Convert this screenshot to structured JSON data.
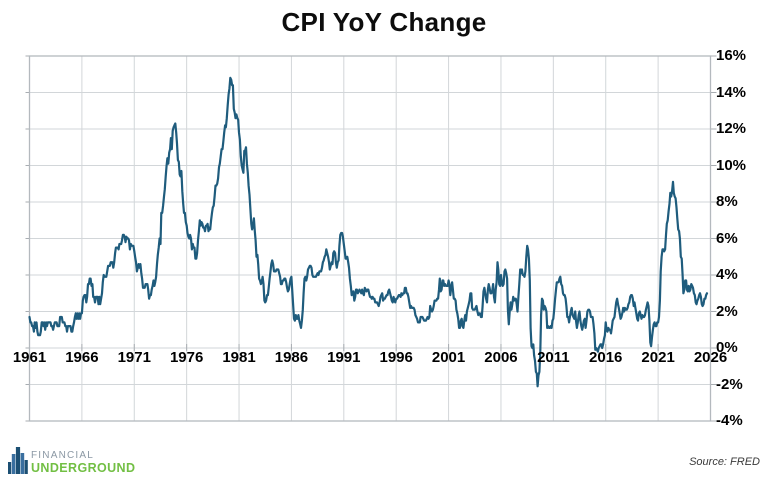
{
  "chart_data": {
    "type": "line",
    "title": "CPI YoY Change",
    "legend": "none",
    "grid": true,
    "x_axis": {
      "min": 1961,
      "max": 2026,
      "ticks": [
        1961,
        1966,
        1971,
        1976,
        1981,
        1986,
        1991,
        1996,
        2001,
        2006,
        2011,
        2016,
        2021,
        2026
      ],
      "tick_labels": [
        "1961",
        "1966",
        "1971",
        "1976",
        "1981",
        "1986",
        "1991",
        "1996",
        "2001",
        "2006",
        "2011",
        "2016",
        "2021",
        "2026"
      ]
    },
    "y_axis": {
      "min": -4,
      "max": 16,
      "step": 2,
      "unit": "%",
      "tick_labels": [
        "16%",
        "14%",
        "12%",
        "10%",
        "8%",
        "6%",
        "4%",
        "2%",
        "0%",
        "-2%",
        "-4%"
      ]
    },
    "series": [
      {
        "name": "CPI YoY % change",
        "color": "#1f5c7d",
        "frequency": "monthly",
        "start_year": 1961,
        "start_month": 1,
        "values": [
          1.7,
          1.4,
          1.4,
          1.2,
          1.2,
          0.9,
          1.4,
          1.1,
          1.4,
          0.9,
          0.7,
          0.7,
          0.7,
          0.9,
          1.4,
          1.4,
          1.2,
          1.4,
          1.0,
          1.4,
          1.2,
          1.4,
          1.4,
          1.4,
          1.4,
          1.2,
          1.2,
          1.0,
          1.2,
          1.4,
          1.4,
          1.4,
          1.2,
          1.2,
          1.2,
          1.7,
          1.7,
          1.7,
          1.4,
          1.4,
          1.4,
          1.2,
          1.2,
          0.9,
          1.2,
          1.2,
          1.2,
          1.2,
          0.9,
          0.9,
          1.2,
          1.4,
          1.7,
          1.9,
          1.6,
          1.9,
          1.6,
          1.9,
          1.6,
          1.9,
          1.9,
          2.6,
          2.8,
          2.9,
          2.9,
          2.5,
          2.8,
          3.5,
          3.5,
          3.8,
          3.8,
          3.4,
          3.5,
          2.8,
          2.8,
          2.5,
          2.8,
          2.8,
          2.8,
          2.4,
          2.8,
          2.4,
          2.7,
          3.0,
          3.6,
          4.0,
          3.9,
          3.9,
          3.9,
          4.2,
          4.5,
          4.5,
          4.5,
          4.7,
          4.7,
          4.7,
          4.4,
          4.7,
          5.2,
          5.5,
          5.5,
          5.5,
          5.4,
          5.7,
          5.7,
          5.7,
          5.9,
          6.2,
          6.2,
          6.1,
          5.8,
          6.1,
          6.0,
          6.0,
          5.9,
          5.4,
          5.7,
          5.6,
          5.6,
          5.6,
          5.3,
          5.0,
          4.7,
          4.2,
          4.4,
          4.6,
          4.4,
          4.6,
          4.1,
          3.8,
          3.3,
          3.3,
          3.3,
          3.5,
          3.5,
          3.5,
          3.2,
          2.7,
          2.9,
          2.9,
          3.2,
          3.4,
          3.7,
          3.4,
          3.6,
          3.9,
          4.6,
          5.1,
          5.5,
          6.0,
          5.7,
          7.4,
          7.4,
          7.8,
          8.3,
          8.7,
          9.4,
          10.0,
          10.4,
          10.1,
          10.7,
          10.9,
          11.5,
          10.9,
          11.9,
          12.1,
          12.2,
          12.3,
          11.8,
          11.2,
          10.3,
          10.2,
          9.5,
          9.4,
          9.7,
          8.6,
          7.9,
          7.4,
          7.4,
          6.9,
          6.7,
          6.3,
          6.1,
          6.0,
          6.2,
          6.0,
          5.4,
          5.7,
          5.5,
          5.5,
          4.9,
          4.9,
          5.2,
          5.9,
          6.4,
          7.0,
          6.7,
          6.9,
          6.8,
          6.6,
          6.6,
          6.4,
          6.7,
          6.7,
          6.8,
          6.4,
          6.6,
          6.5,
          7.0,
          7.4,
          7.7,
          7.8,
          8.3,
          8.9,
          8.9,
          9.0,
          9.3,
          9.9,
          10.1,
          10.5,
          10.9,
          10.9,
          11.3,
          11.8,
          12.2,
          12.1,
          12.6,
          13.3,
          13.9,
          14.2,
          14.8,
          14.7,
          14.4,
          14.4,
          13.1,
          12.9,
          12.6,
          12.8,
          12.6,
          12.5,
          11.8,
          11.4,
          10.5,
          10.0,
          9.8,
          9.6,
          10.8,
          10.8,
          11.0,
          10.1,
          9.6,
          8.9,
          8.4,
          7.6,
          6.8,
          6.5,
          6.7,
          7.1,
          6.4,
          5.9,
          5.0,
          5.1,
          4.6,
          3.8,
          3.7,
          3.5,
          3.6,
          3.9,
          3.5,
          2.6,
          2.5,
          2.6,
          2.9,
          2.9,
          3.3,
          3.8,
          4.2,
          4.6,
          4.8,
          4.6,
          4.2,
          4.2,
          4.2,
          4.3,
          4.3,
          4.3,
          4.1,
          3.9,
          3.5,
          3.5,
          3.7,
          3.7,
          3.8,
          3.8,
          3.6,
          3.3,
          3.1,
          3.2,
          3.5,
          3.8,
          3.9,
          3.1,
          2.3,
          1.6,
          1.5,
          1.8,
          1.6,
          1.6,
          1.8,
          1.5,
          1.3,
          1.1,
          1.5,
          2.1,
          3.0,
          3.8,
          3.9,
          3.7,
          3.9,
          4.3,
          4.4,
          4.5,
          4.5,
          4.4,
          4.0,
          3.9,
          3.9,
          3.9,
          3.9,
          4.0,
          4.1,
          4.0,
          4.2,
          4.2,
          4.2,
          4.4,
          4.7,
          4.8,
          5.0,
          5.1,
          5.4,
          5.2,
          5.0,
          4.7,
          4.3,
          4.5,
          4.7,
          4.6,
          5.2,
          5.3,
          5.2,
          4.7,
          4.4,
          4.7,
          4.8,
          5.6,
          6.2,
          6.3,
          6.3,
          6.1,
          5.7,
          5.3,
          4.9,
          4.9,
          5.0,
          4.7,
          4.4,
          3.8,
          3.4,
          2.9,
          3.0,
          3.1,
          2.6,
          2.8,
          3.2,
          3.2,
          3.0,
          3.1,
          3.2,
          3.1,
          3.0,
          3.2,
          3.0,
          2.9,
          3.3,
          3.2,
          3.1,
          3.2,
          3.2,
          3.0,
          2.8,
          2.8,
          2.7,
          2.8,
          2.7,
          2.7,
          2.5,
          2.5,
          2.5,
          2.4,
          2.3,
          2.5,
          2.8,
          2.9,
          3.0,
          2.6,
          2.7,
          2.7,
          2.8,
          2.9,
          2.9,
          3.1,
          3.2,
          3.0,
          2.8,
          2.6,
          2.5,
          2.8,
          2.6,
          2.5,
          2.7,
          2.7,
          2.8,
          2.9,
          2.9,
          2.8,
          3.0,
          2.9,
          3.0,
          3.0,
          3.3,
          3.3,
          3.0,
          3.0,
          2.8,
          2.5,
          2.2,
          2.3,
          2.2,
          2.2,
          2.2,
          2.1,
          1.8,
          1.7,
          1.6,
          1.4,
          1.4,
          1.4,
          1.7,
          1.7,
          1.7,
          1.6,
          1.5,
          1.5,
          1.5,
          1.6,
          1.7,
          1.6,
          1.7,
          2.3,
          2.1,
          2.0,
          2.1,
          2.3,
          2.6,
          2.6,
          2.6,
          2.7,
          2.7,
          3.2,
          3.8,
          3.1,
          3.2,
          3.7,
          3.7,
          3.4,
          3.5,
          3.4,
          3.4,
          3.4,
          3.7,
          3.5,
          2.9,
          3.3,
          3.6,
          3.2,
          2.7,
          2.7,
          2.6,
          2.1,
          1.9,
          1.6,
          1.1,
          1.1,
          1.5,
          1.6,
          1.2,
          1.1,
          1.5,
          1.8,
          1.5,
          2.0,
          2.2,
          2.4,
          2.6,
          3.0,
          3.0,
          2.2,
          2.1,
          2.1,
          2.1,
          2.2,
          2.3,
          2.0,
          1.8,
          1.9,
          1.9,
          1.7,
          1.7,
          2.3,
          3.1,
          3.3,
          3.0,
          2.7,
          2.5,
          3.2,
          3.5,
          3.3,
          3.0,
          3.0,
          3.1,
          3.5,
          2.8,
          2.5,
          3.2,
          3.6,
          4.7,
          4.3,
          3.5,
          3.4,
          4.0,
          3.6,
          3.4,
          3.5,
          4.2,
          4.3,
          4.1,
          3.8,
          2.1,
          1.3,
          2.0,
          2.5,
          2.1,
          2.4,
          2.8,
          2.6,
          2.7,
          2.7,
          2.4,
          2.0,
          2.8,
          3.5,
          4.3,
          4.1,
          4.3,
          4.0,
          4.0,
          3.9,
          4.2,
          5.0,
          5.6,
          5.4,
          4.9,
          3.7,
          1.1,
          0.1,
          0.0,
          0.2,
          -0.4,
          -0.7,
          -1.3,
          -1.4,
          -2.1,
          -1.5,
          -1.3,
          -0.2,
          1.8,
          2.7,
          2.6,
          2.1,
          2.3,
          2.2,
          2.0,
          1.1,
          1.2,
          1.1,
          1.1,
          1.2,
          1.1,
          1.5,
          1.6,
          2.1,
          2.7,
          3.2,
          3.6,
          3.6,
          3.6,
          3.8,
          3.9,
          3.5,
          3.4,
          3.0,
          2.9,
          2.9,
          2.7,
          2.3,
          1.7,
          1.7,
          1.4,
          1.7,
          2.0,
          2.2,
          1.8,
          1.7,
          1.6,
          2.0,
          1.5,
          1.1,
          1.4,
          1.8,
          2.0,
          1.5,
          1.2,
          1.0,
          1.2,
          1.5,
          1.6,
          1.1,
          1.5,
          2.0,
          2.1,
          2.1,
          2.0,
          1.7,
          1.7,
          1.7,
          1.3,
          0.8,
          -0.1,
          0.0,
          -0.1,
          -0.2,
          0.0,
          0.1,
          0.2,
          0.2,
          0.0,
          0.2,
          0.5,
          0.7,
          1.4,
          1.0,
          0.9,
          1.1,
          1.0,
          1.0,
          0.8,
          1.1,
          1.5,
          1.6,
          1.7,
          2.1,
          2.5,
          2.7,
          2.4,
          2.2,
          1.9,
          1.6,
          1.7,
          1.9,
          2.2,
          2.0,
          2.2,
          2.1,
          2.1,
          2.2,
          2.4,
          2.5,
          2.8,
          2.9,
          2.9,
          2.7,
          2.3,
          2.5,
          2.2,
          1.9,
          1.6,
          1.5,
          1.9,
          2.0,
          1.8,
          1.6,
          1.8,
          1.7,
          1.7,
          1.8,
          2.1,
          2.3,
          2.5,
          2.3,
          1.5,
          0.3,
          0.1,
          0.6,
          1.0,
          1.3,
          1.4,
          1.2,
          1.2,
          1.4,
          1.4,
          1.7,
          2.6,
          4.2,
          5.0,
          5.4,
          5.4,
          5.3,
          5.4,
          6.2,
          6.8,
          7.0,
          7.5,
          7.9,
          8.5,
          8.3,
          8.6,
          9.1,
          8.5,
          8.3,
          8.2,
          7.7,
          7.1,
          6.5,
          6.4,
          6.0,
          5.0,
          4.9,
          4.0,
          3.0,
          3.2,
          3.7,
          3.7,
          3.2,
          3.1,
          3.4,
          3.1,
          3.2,
          3.5,
          3.4,
          3.3,
          3.0,
          2.9,
          2.5,
          2.4,
          2.6,
          2.7,
          2.9,
          3.0,
          2.8,
          2.4,
          2.3,
          2.4,
          2.7,
          2.7,
          2.9,
          3.0
        ]
      }
    ],
    "colors": {
      "line": "#1f5c7d",
      "gridline": "#d2d6d9",
      "plot_border": "#b4b9be",
      "tick": "#a8adb2"
    }
  },
  "footer": {
    "logo": {
      "line1": "FINANCIAL",
      "line2": "UNDERGROUND",
      "line1_color": "#8b98a4",
      "line2_color": "#72bf44",
      "icon": "building-skyline-icon",
      "icon_colors": [
        "#1c4f73",
        "#3a6f9f"
      ]
    },
    "source": "Source: FRED"
  }
}
